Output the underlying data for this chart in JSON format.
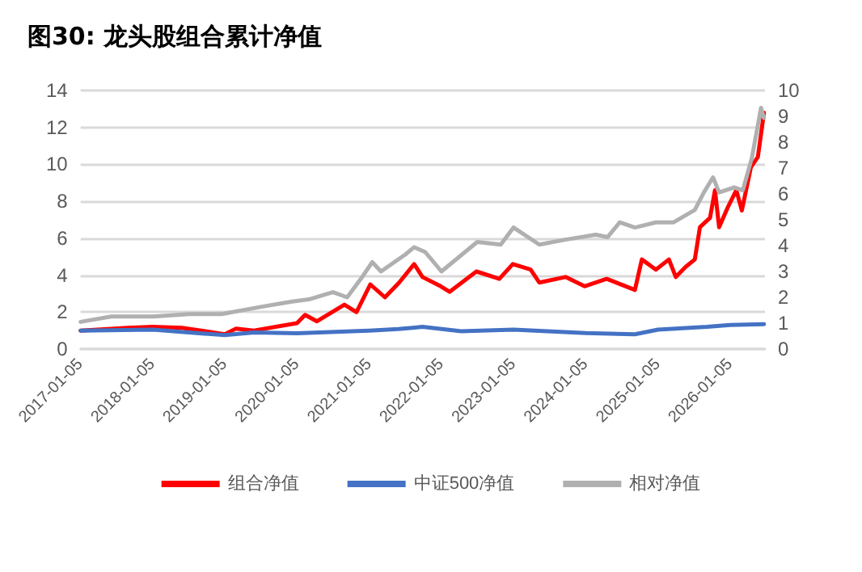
{
  "chart_data": {
    "type": "line",
    "title": "图30: 龙头股组合累计净值",
    "xlim": [
      "2017-01-05",
      "2026-06-30"
    ],
    "xticks": [
      "2017-01-05",
      "2018-01-05",
      "2019-01-05",
      "2020-01-05",
      "2021-01-05",
      "2022-01-05",
      "2023-01-05",
      "2024-01-05",
      "2025-01-05",
      "2026-01-05"
    ],
    "ylim": [
      0,
      14
    ],
    "yticks": [
      0,
      2,
      4,
      6,
      8,
      10,
      12,
      14
    ],
    "y2lim": [
      0,
      10
    ],
    "y2ticks": [
      0,
      1,
      2,
      3,
      4,
      5,
      6,
      7,
      8,
      9,
      10
    ],
    "grid": "y",
    "legend": "bottom",
    "marker": "none",
    "line_style": "solid",
    "series": [
      {
        "name": "组合净值",
        "color": "#ff0000",
        "x": [
          "2017-01-05",
          "2017-09-01",
          "2018-01-05",
          "2018-06-01",
          "2019-01-05",
          "2019-03-01",
          "2019-06-01",
          "2020-01-05",
          "2020-02-15",
          "2020-04-15",
          "2020-09-01",
          "2020-11-01",
          "2021-01-10",
          "2021-03-25",
          "2021-06-05",
          "2021-08-20",
          "2021-10-01",
          "2022-01-01",
          "2022-02-15",
          "2022-07-01",
          "2022-10-25",
          "2023-01-01",
          "2023-04-01",
          "2023-05-15",
          "2023-09-25",
          "2023-12-30",
          "2024-04-20",
          "2024-09-10",
          "2024-10-15",
          "2024-12-25",
          "2025-03-01",
          "2025-04-05",
          "2025-05-25",
          "2025-07-10",
          "2025-08-05",
          "2025-09-25",
          "2025-10-20",
          "2025-11-10",
          "2025-12-25",
          "2026-02-05",
          "2026-03-05",
          "2026-04-20",
          "2026-05-25",
          "2026-06-25"
        ],
        "values": [
          1.0,
          1.15,
          1.2,
          1.15,
          0.8,
          1.1,
          1.0,
          1.4,
          1.85,
          1.5,
          2.4,
          2.0,
          3.5,
          2.8,
          3.6,
          4.6,
          3.9,
          3.4,
          3.1,
          4.2,
          3.8,
          4.6,
          4.3,
          3.6,
          3.9,
          3.4,
          3.8,
          3.2,
          4.85,
          4.3,
          4.85,
          3.9,
          4.45,
          4.85,
          6.6,
          7.1,
          8.6,
          6.6,
          7.7,
          8.6,
          7.5,
          9.85,
          10.4,
          12.8
        ]
      },
      {
        "name": "中证500净值",
        "color": "#4472c4",
        "x": [
          "2017-01-05",
          "2018-01-05",
          "2019-01-05",
          "2019-06-01",
          "2020-01-05",
          "2021-01-05",
          "2021-06-01",
          "2021-10-01",
          "2022-04-15",
          "2023-01-05",
          "2024-01-05",
          "2024-09-10",
          "2025-01-05",
          "2025-09-10",
          "2026-01-05",
          "2026-06-25"
        ],
        "values": [
          1.0,
          1.05,
          0.75,
          0.9,
          0.85,
          1.0,
          1.08,
          1.2,
          0.96,
          1.05,
          0.86,
          0.8,
          1.05,
          1.2,
          1.3,
          1.35
        ]
      },
      {
        "name": "相对净值",
        "color": "#b0b0b0",
        "axis": "y2",
        "x": [
          "2017-01-05",
          "2017-06-10",
          "2018-01-10",
          "2018-07-10",
          "2018-12-20",
          "2019-07-05",
          "2019-12-05",
          "2020-03-05",
          "2020-07-05",
          "2020-09-15",
          "2020-12-01",
          "2021-01-20",
          "2021-03-05",
          "2021-07-05",
          "2021-08-20",
          "2021-10-15",
          "2022-01-05",
          "2022-07-05",
          "2022-11-01",
          "2023-01-05",
          "2023-05-15",
          "2023-09-25",
          "2024-02-25",
          "2024-04-25",
          "2024-06-25",
          "2024-09-10",
          "2024-12-25",
          "2025-03-25",
          "2025-07-10",
          "2025-08-25",
          "2025-10-10",
          "2025-11-10",
          "2026-01-25",
          "2026-03-10",
          "2026-04-25",
          "2026-06-10",
          "2026-06-25"
        ],
        "values": [
          1.05,
          1.26,
          1.26,
          1.35,
          1.35,
          1.63,
          1.83,
          1.92,
          2.2,
          2.0,
          2.8,
          3.36,
          3.0,
          3.65,
          3.94,
          3.75,
          3.0,
          4.14,
          4.04,
          4.7,
          4.04,
          4.23,
          4.42,
          4.33,
          4.9,
          4.7,
          4.9,
          4.9,
          5.38,
          6.06,
          6.64,
          6.06,
          6.25,
          6.14,
          7.4,
          9.33,
          8.94
        ]
      }
    ]
  }
}
